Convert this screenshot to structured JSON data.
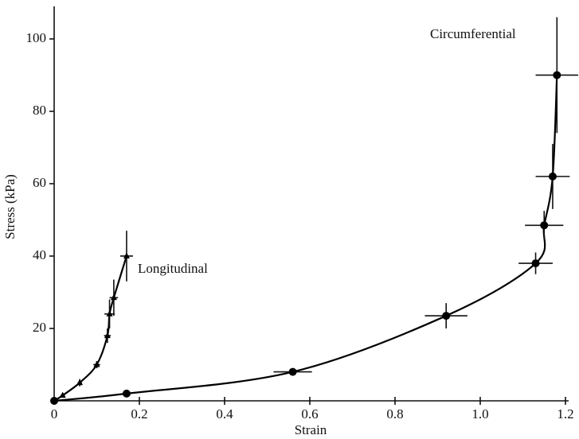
{
  "chart_data": {
    "type": "line",
    "x_label": "Strain",
    "y_label": "Stress (kPa)",
    "xlim": [
      0,
      1.2
    ],
    "ylim": [
      0,
      109
    ],
    "xticks": [
      0,
      0.2,
      0.4,
      0.6,
      0.8,
      {
        "value": 1,
        "label": "1.0"
      },
      1.2
    ],
    "yticks": [
      20,
      40,
      60,
      80,
      100
    ],
    "color": "#000000",
    "series": [
      {
        "name": "Circumferential",
        "marker": "circle",
        "x": [
          0,
          0.17,
          0.56,
          0.92,
          1.13,
          1.15,
          1.17,
          1.18
        ],
        "values": [
          0,
          2,
          8,
          23.5,
          38,
          48.5,
          62,
          90
        ],
        "xerr": [
          0,
          0.01,
          0.045,
          0.05,
          0.04,
          0.045,
          0.04,
          0.05
        ],
        "yerr": [
          0,
          0.5,
          1,
          3.5,
          3,
          4,
          9,
          16
        ]
      },
      {
        "name": "Longitudinal",
        "marker": "triangle",
        "x": [
          0,
          0.02,
          0.06,
          0.1,
          0.125,
          0.13,
          0.14,
          0.17
        ],
        "values": [
          0,
          1.5,
          5,
          10,
          18,
          24,
          28.5,
          40
        ],
        "xerr": [
          0,
          0.005,
          0.005,
          0.008,
          0.008,
          0.012,
          0.01,
          0.015
        ],
        "yerr": [
          0,
          0.5,
          1,
          1,
          2,
          4,
          5,
          7
        ]
      }
    ]
  }
}
